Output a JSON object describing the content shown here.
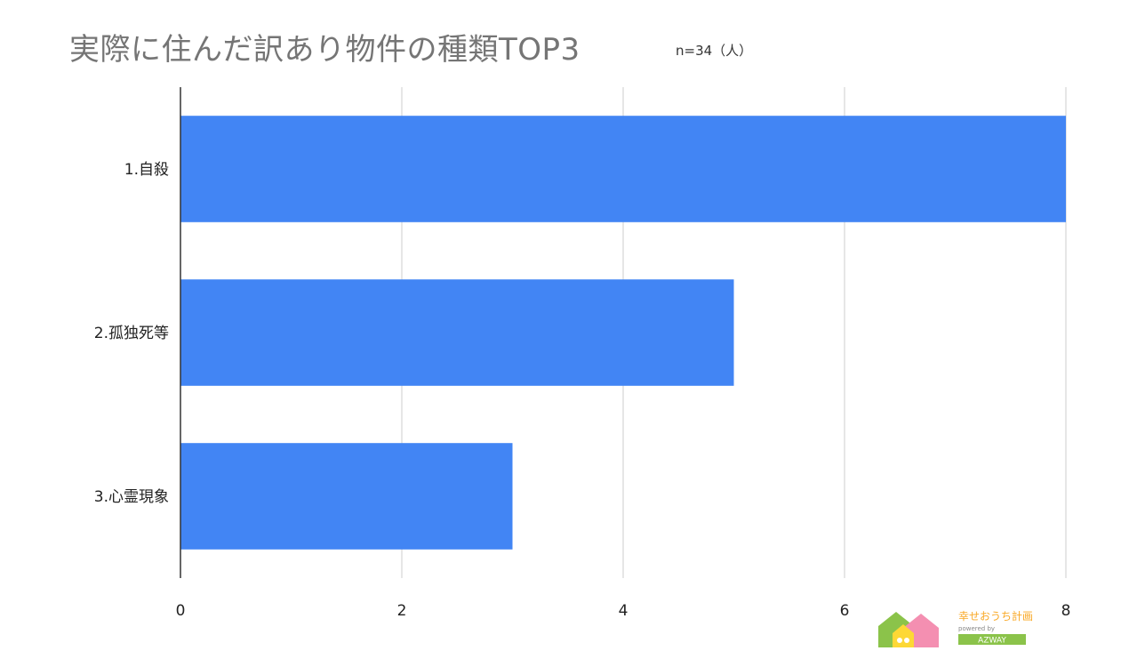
{
  "chart_data": {
    "type": "bar",
    "orientation": "horizontal",
    "title": "実際に住んだ訳あり物件の種類TOP3",
    "subtitle": "n=34（人）",
    "categories": [
      "1.自殺",
      "2.孤独死等",
      "3.心霊現象"
    ],
    "values": [
      8,
      5,
      3
    ],
    "xlim": [
      0,
      8
    ],
    "xticks": [
      0,
      2,
      4,
      6,
      8
    ],
    "xlabel": "",
    "ylabel": "",
    "grid": true,
    "bar_color": "#4285f4"
  },
  "logo": {
    "text": "幸せおうち計画",
    "sub": "powered by",
    "brand": "AZWAY"
  }
}
